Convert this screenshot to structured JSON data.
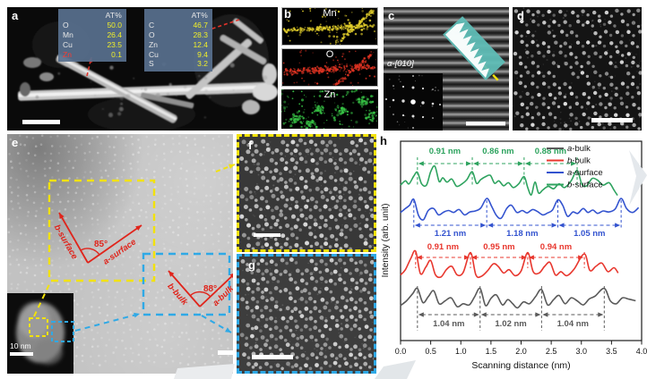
{
  "panels": {
    "a": {
      "label": "a",
      "eds_tables": [
        {
          "header": "AT%",
          "rows": [
            {
              "el": "O",
              "val": "50.0"
            },
            {
              "el": "Mn",
              "val": "26.4"
            },
            {
              "el": "Cu",
              "val": "23.5"
            },
            {
              "el": "Zn",
              "val": "0.1",
              "highlight": true
            }
          ]
        },
        {
          "header": "AT%",
          "rows": [
            {
              "el": "C",
              "val": "46.7"
            },
            {
              "el": "O",
              "val": "28.3"
            },
            {
              "el": "Zn",
              "val": "12.4"
            },
            {
              "el": "Cu",
              "val": "9.4"
            },
            {
              "el": "S",
              "val": "3.2"
            }
          ]
        }
      ]
    },
    "b": {
      "label": "b",
      "maps": [
        {
          "element": "Mn",
          "color": "#e3cf2b"
        },
        {
          "element": "O",
          "color": "#dd3322"
        },
        {
          "element": "Zn",
          "color": "#37c145"
        }
      ]
    },
    "c": {
      "label": "c",
      "zone_axis_label": "α-[010]"
    },
    "d": {
      "label": "d"
    },
    "e": {
      "label": "e",
      "surface": {
        "angle": "85°",
        "arm1": "b-surface",
        "arm2": "a-surface"
      },
      "bulk": {
        "angle": "88°",
        "arm1": "b-bulk",
        "arm2": "a-bulk"
      },
      "inset_scale_label": "10 nm"
    },
    "f": {
      "label": "f"
    },
    "g": {
      "label": "g"
    },
    "h": {
      "label": "h"
    }
  },
  "chart_data": {
    "type": "line",
    "title": "",
    "xlabel": "Scanning distance (nm)",
    "ylabel": "Intensity (arb. unit)",
    "xlim": [
      0,
      4
    ],
    "xticks": [
      0,
      0.5,
      1,
      1.5,
      2,
      2.5,
      3,
      3.5,
      4
    ],
    "grid": false,
    "legend_position": "top-right",
    "series": [
      {
        "name": "a-bulk",
        "label_em": "a",
        "label_rest": "-bulk",
        "color": "#5a5a5a",
        "peak_positions_nm": [
          0.28,
          1.32,
          2.34,
          3.38
        ],
        "interval_labels": [
          "1.04 nm",
          "1.02 nm",
          "1.04 nm"
        ],
        "points": [
          [
            0,
            0.28
          ],
          [
            0.1,
            0.44
          ],
          [
            0.2,
            0.68
          ],
          [
            0.28,
            0.86
          ],
          [
            0.37,
            0.38
          ],
          [
            0.46,
            0.58
          ],
          [
            0.55,
            0.78
          ],
          [
            0.64,
            0.34
          ],
          [
            0.74,
            0.44
          ],
          [
            0.84,
            0.54
          ],
          [
            0.94,
            0.24
          ],
          [
            1.04,
            0.34
          ],
          [
            1.14,
            0.3
          ],
          [
            1.23,
            0.58
          ],
          [
            1.32,
            0.86
          ],
          [
            1.41,
            0.28
          ],
          [
            1.5,
            0.52
          ],
          [
            1.59,
            0.64
          ],
          [
            1.69,
            0.3
          ],
          [
            1.78,
            0.48
          ],
          [
            1.86,
            0.34
          ],
          [
            1.94,
            0.2
          ],
          [
            2.04,
            0.4
          ],
          [
            2.14,
            0.34
          ],
          [
            2.24,
            0.58
          ],
          [
            2.34,
            0.82
          ],
          [
            2.44,
            0.3
          ],
          [
            2.54,
            0.48
          ],
          [
            2.63,
            0.62
          ],
          [
            2.73,
            0.34
          ],
          [
            2.83,
            0.54
          ],
          [
            2.93,
            0.44
          ],
          [
            3.03,
            0.3
          ],
          [
            3.13,
            0.5
          ],
          [
            3.23,
            0.6
          ],
          [
            3.38,
            0.86
          ],
          [
            3.48,
            0.44
          ],
          [
            3.58,
            0.34
          ],
          [
            3.68,
            0.54
          ],
          [
            3.78,
            0.5
          ],
          [
            3.9,
            0.44
          ]
        ]
      },
      {
        "name": "b-bulk",
        "label_em": "b",
        "label_rest": "-bulk",
        "color": "#e8372e",
        "peak_positions_nm": [
          0.25,
          1.16,
          2.11,
          3.05
        ],
        "interval_labels": [
          "0.91 nm",
          "0.95 nm",
          "0.94 nm"
        ],
        "points": [
          [
            0,
            0.28
          ],
          [
            0.08,
            0.44
          ],
          [
            0.17,
            0.78
          ],
          [
            0.25,
            1.0
          ],
          [
            0.33,
            0.32
          ],
          [
            0.42,
            0.52
          ],
          [
            0.5,
            0.72
          ],
          [
            0.58,
            0.28
          ],
          [
            0.67,
            0.22
          ],
          [
            0.76,
            0.44
          ],
          [
            0.85,
            0.54
          ],
          [
            0.94,
            0.28
          ],
          [
            1.04,
            0.36
          ],
          [
            1.16,
            0.96
          ],
          [
            1.25,
            0.28
          ],
          [
            1.34,
            0.24
          ],
          [
            1.44,
            0.4
          ],
          [
            1.54,
            0.62
          ],
          [
            1.62,
            0.54
          ],
          [
            1.71,
            0.34
          ],
          [
            1.8,
            0.44
          ],
          [
            1.9,
            0.26
          ],
          [
            2.0,
            0.4
          ],
          [
            2.11,
            0.96
          ],
          [
            2.2,
            0.38
          ],
          [
            2.3,
            0.34
          ],
          [
            2.39,
            0.54
          ],
          [
            2.48,
            0.66
          ],
          [
            2.57,
            0.28
          ],
          [
            2.66,
            0.38
          ],
          [
            2.76,
            0.26
          ],
          [
            2.88,
            0.46
          ],
          [
            3.05,
            0.92
          ],
          [
            3.14,
            0.42
          ],
          [
            3.24,
            0.54
          ],
          [
            3.34,
            0.64
          ],
          [
            3.44,
            0.38
          ],
          [
            3.54,
            0.5
          ],
          [
            3.61,
            0.34
          ]
        ]
      },
      {
        "name": "a-surface",
        "label_em": "a",
        "label_rest": "-surface",
        "color": "#3353cf",
        "peak_positions_nm": [
          0.22,
          1.43,
          2.61,
          3.66
        ],
        "interval_labels": [
          "1.21 nm",
          "1.18 nm",
          "1.05 nm"
        ],
        "points": [
          [
            0,
            0.42
          ],
          [
            0.08,
            0.58
          ],
          [
            0.15,
            0.72
          ],
          [
            0.22,
            0.96
          ],
          [
            0.3,
            0.28
          ],
          [
            0.38,
            0.12
          ],
          [
            0.46,
            0.5
          ],
          [
            0.55,
            0.58
          ],
          [
            0.63,
            0.32
          ],
          [
            0.72,
            0.44
          ],
          [
            0.8,
            0.5
          ],
          [
            0.88,
            0.42
          ],
          [
            0.97,
            0.54
          ],
          [
            1.06,
            0.32
          ],
          [
            1.15,
            0.44
          ],
          [
            1.24,
            0.48
          ],
          [
            1.33,
            0.6
          ],
          [
            1.43,
            1.0
          ],
          [
            1.51,
            0.68
          ],
          [
            1.59,
            0.3
          ],
          [
            1.67,
            0.18
          ],
          [
            1.76,
            0.58
          ],
          [
            1.84,
            0.72
          ],
          [
            1.93,
            0.42
          ],
          [
            2.02,
            0.5
          ],
          [
            2.1,
            0.4
          ],
          [
            2.19,
            0.54
          ],
          [
            2.27,
            0.46
          ],
          [
            2.36,
            0.32
          ],
          [
            2.44,
            0.4
          ],
          [
            2.52,
            0.52
          ],
          [
            2.61,
            0.94
          ],
          [
            2.69,
            0.72
          ],
          [
            2.77,
            0.26
          ],
          [
            2.86,
            0.44
          ],
          [
            2.94,
            0.38
          ],
          [
            3.03,
            0.58
          ],
          [
            3.11,
            0.42
          ],
          [
            3.19,
            0.52
          ],
          [
            3.27,
            0.38
          ],
          [
            3.36,
            0.48
          ],
          [
            3.46,
            0.44
          ],
          [
            3.56,
            0.56
          ],
          [
            3.66,
            1.0
          ],
          [
            3.75,
            0.58
          ],
          [
            3.85,
            0.42
          ],
          [
            3.95,
            0.62
          ]
        ]
      },
      {
        "name": "b-surface",
        "label_em": "b",
        "label_rest": "-surface",
        "color": "#2ea35f",
        "peak_positions_nm": [
          0.28,
          1.19,
          2.05,
          2.93
        ],
        "interval_labels": [
          "0.91 nm",
          "0.86 nm",
          "0.88 nm"
        ],
        "points": [
          [
            0,
            0.38
          ],
          [
            0.08,
            0.52
          ],
          [
            0.14,
            0.42
          ],
          [
            0.22,
            0.68
          ],
          [
            0.28,
            0.8
          ],
          [
            0.35,
            0.42
          ],
          [
            0.43,
            0.38
          ],
          [
            0.5,
            0.82
          ],
          [
            0.57,
            1.0
          ],
          [
            0.64,
            0.5
          ],
          [
            0.7,
            0.62
          ],
          [
            0.77,
            0.48
          ],
          [
            0.85,
            0.58
          ],
          [
            0.93,
            0.34
          ],
          [
            1.02,
            0.42
          ],
          [
            1.1,
            0.56
          ],
          [
            1.19,
            0.82
          ],
          [
            1.26,
            0.44
          ],
          [
            1.33,
            0.56
          ],
          [
            1.41,
            0.66
          ],
          [
            1.49,
            0.7
          ],
          [
            1.56,
            0.44
          ],
          [
            1.63,
            0.52
          ],
          [
            1.71,
            0.36
          ],
          [
            1.79,
            0.46
          ],
          [
            1.87,
            0.3
          ],
          [
            1.96,
            0.42
          ],
          [
            2.05,
            0.66
          ],
          [
            2.11,
            0.3
          ],
          [
            2.17,
            0.06
          ],
          [
            2.23,
            0.48
          ],
          [
            2.29,
            0.12
          ],
          [
            2.36,
            0.22
          ],
          [
            2.45,
            0.34
          ],
          [
            2.54,
            0.26
          ],
          [
            2.63,
            0.42
          ],
          [
            2.72,
            0.3
          ],
          [
            2.83,
            0.52
          ],
          [
            2.93,
            0.86
          ],
          [
            3.01,
            0.4
          ],
          [
            3.09,
            0.36
          ],
          [
            3.18,
            0.6
          ],
          [
            3.27,
            0.54
          ],
          [
            3.36,
            0.38
          ],
          [
            3.46,
            0.46
          ],
          [
            3.54,
            0.22
          ],
          [
            3.6,
            0.04
          ]
        ]
      }
    ]
  }
}
